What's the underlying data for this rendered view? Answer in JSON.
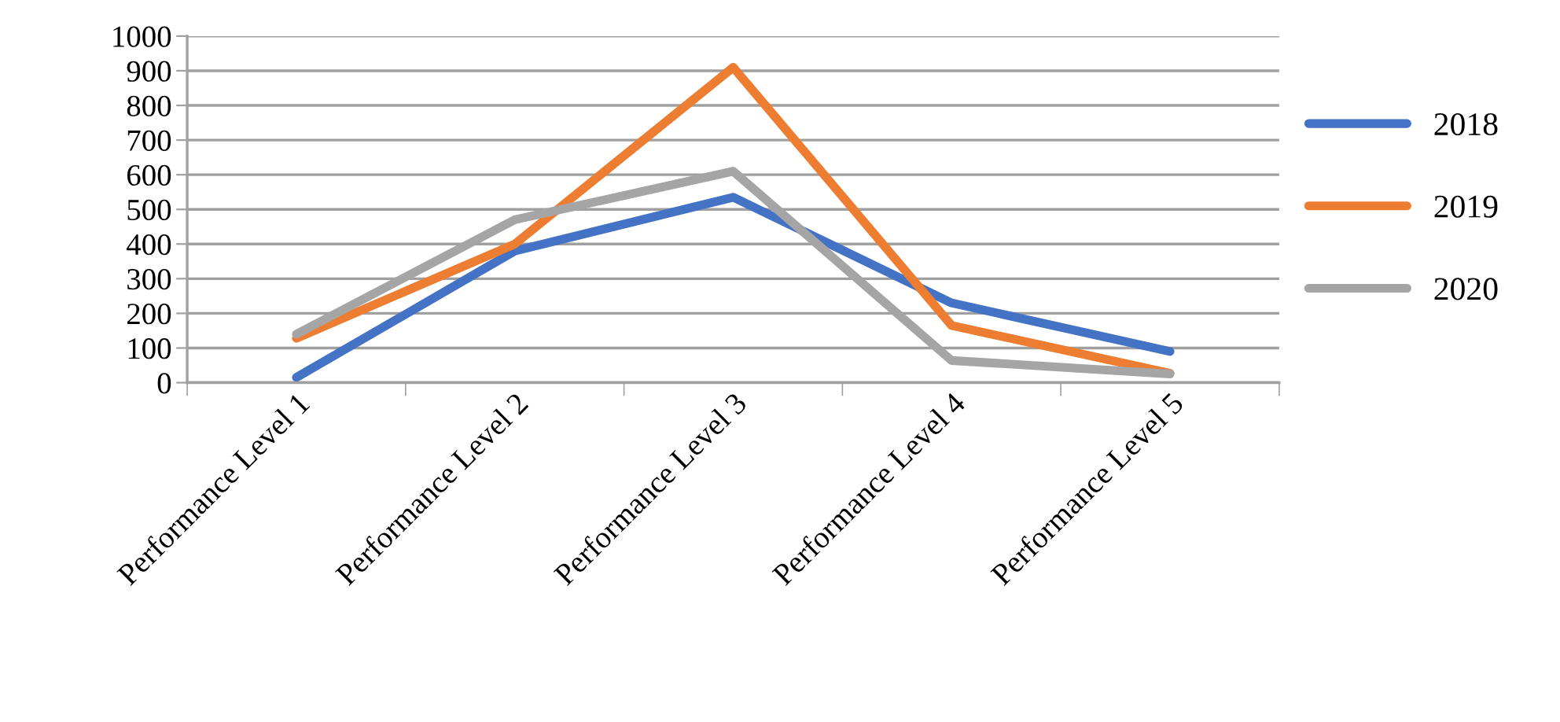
{
  "chart_data": {
    "type": "line",
    "categories": [
      "Performance Level 1",
      "Performance Level 2",
      "Performance Level 3",
      "Performance Level 4",
      "Performance Level 5"
    ],
    "series": [
      {
        "name": "2018",
        "color": "#4472c4",
        "values": [
          15,
          380,
          535,
          230,
          90
        ]
      },
      {
        "name": "2019",
        "color": "#ed7d31",
        "values": [
          128,
          400,
          910,
          165,
          27
        ]
      },
      {
        "name": "2020",
        "color": "#a5a5a5",
        "values": [
          140,
          470,
          610,
          64,
          25
        ]
      }
    ],
    "ylim": [
      0,
      1000
    ],
    "yticks": [
      0,
      100,
      200,
      300,
      400,
      500,
      600,
      700,
      800,
      900,
      1000
    ],
    "grid": "y",
    "legend": "right",
    "marker": "none",
    "line_style": "solid"
  }
}
